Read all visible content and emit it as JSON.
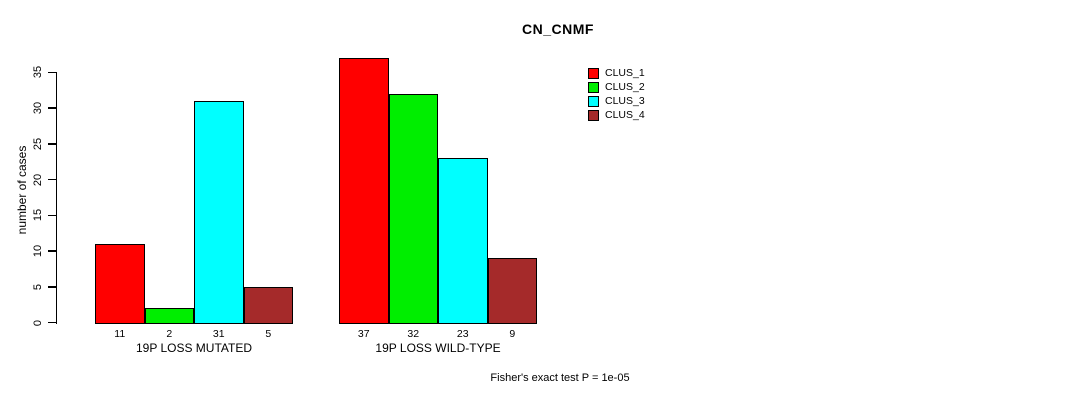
{
  "chart_data": {
    "type": "bar",
    "title": "CN_CNMF",
    "xlabel": "",
    "ylabel": "number of cases",
    "ylim": [
      0,
      35
    ],
    "yticks": [
      0,
      5,
      10,
      15,
      20,
      25,
      30,
      35
    ],
    "grid": false,
    "show_bar_values": true,
    "categories": [
      "19P LOSS MUTATED",
      "19P LOSS WILD-TYPE"
    ],
    "series": [
      {
        "name": "CLUS_1",
        "color": "#FF0000",
        "values": [
          11,
          37
        ]
      },
      {
        "name": "CLUS_2",
        "color": "#00EE00",
        "values": [
          2,
          32
        ]
      },
      {
        "name": "CLUS_3",
        "color": "#00FFFF",
        "values": [
          31,
          23
        ]
      },
      {
        "name": "CLUS_4",
        "color": "#A52A2A",
        "values": [
          5,
          9
        ]
      }
    ],
    "legend_position": "right",
    "legend_labels": [
      "CLUS_1",
      "CLUS_2",
      "CLUS_3",
      "CLUS_4"
    ],
    "annotation": "Fisher's exact test P = 1e-05"
  }
}
